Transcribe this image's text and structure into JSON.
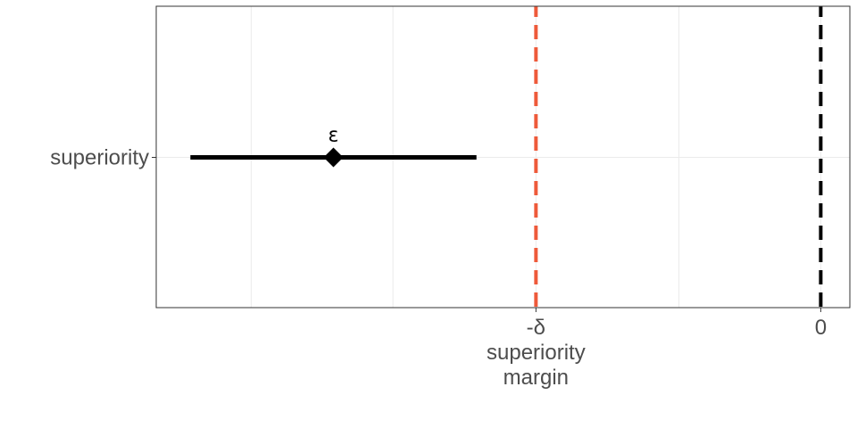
{
  "chart_data": {
    "type": "scatter",
    "title": "",
    "xlabel": "",
    "ylabel": "",
    "xlim": [
      -5.25,
      0.23
    ],
    "grid": true,
    "legend": "none",
    "y_categories": [
      "superiority"
    ],
    "points": [
      {
        "category": "superiority",
        "estimate": -3.85,
        "ci_low": -4.98,
        "ci_high": -2.72,
        "label": "ε"
      }
    ],
    "reference_lines": [
      {
        "x": -2.25,
        "style": "dashed",
        "color": "#ee5a3a"
      },
      {
        "x": 0,
        "style": "dashed",
        "color": "#000000"
      }
    ],
    "x_ticks": [
      {
        "value": -2.25,
        "label": "-δ",
        "sublabel_line1": "superiority",
        "sublabel_line2": "margin"
      },
      {
        "value": 0,
        "label": "0"
      }
    ],
    "minor_gridlines_x": [
      -4.5,
      -3.38,
      -1.12
    ]
  }
}
